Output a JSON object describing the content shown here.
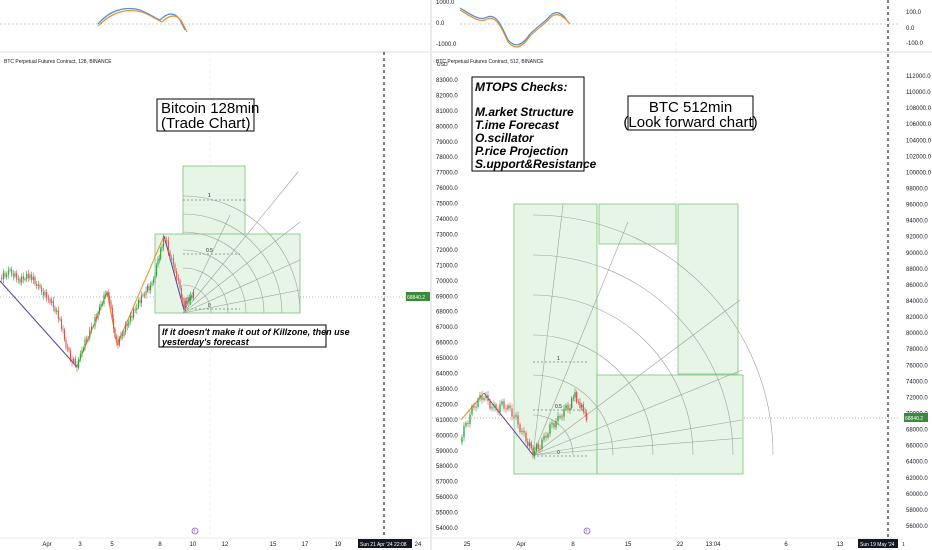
{
  "left_chart": {
    "header": "BTC Perpetual Futures Contract, 128, BINANCE",
    "title_lines": [
      "Bitcoin 128min",
      "(Trade Chart)"
    ],
    "note_lines": [
      "If it doesn't make it out of Killzone, then use",
      "yesterday's forecast"
    ],
    "price_ticks": [
      "83000.0",
      "82000.0",
      "81000.0",
      "80000.0",
      "79000.0",
      "78000.0",
      "77000.0",
      "76000.0",
      "75000.0",
      "74000.0",
      "73000.0",
      "72000.0",
      "71000.0",
      "70000.0",
      "69000.0",
      "68000.0",
      "67000.0",
      "66000.0",
      "65000.0",
      "64000.0",
      "63000.0",
      "62000.0",
      "61000.0",
      "60000.0",
      "59000.0",
      "58000.0",
      "57000.0",
      "56000.0",
      "55000.0",
      "54000.0"
    ],
    "price_unit": "USD",
    "last_price": "68840.2",
    "date_ticks": [
      "Apr",
      "3",
      "5",
      "8",
      "10",
      "12",
      "15",
      "17",
      "19",
      "24"
    ],
    "time_label": "Sun 21 Apr '24   22:08",
    "fib_levels": [
      "1",
      "0.5",
      "0"
    ],
    "osc_ticks": []
  },
  "right_chart": {
    "header": "BTC Perpetual Futures Contract, 512, BINANCE",
    "title_lines": [
      "BTC 512min",
      "(Look forward chart)"
    ],
    "mtops_lines": [
      "MTOPS Checks:",
      "",
      "M.arket Structure",
      "T.ime Forecast",
      "O.scillator",
      "P.rice Projection",
      "S.upport&Resistance"
    ],
    "price_ticks": [
      "112000.0",
      "110000.0",
      "108000.0",
      "106000.0",
      "104000.0",
      "102000.0",
      "100000.0",
      "98000.0",
      "96000.0",
      "94000.0",
      "92000.0",
      "90000.0",
      "88000.0",
      "86000.0",
      "84000.0",
      "82000.0",
      "80000.0",
      "78000.0",
      "76000.0",
      "74000.0",
      "72000.0",
      "70000.0",
      "68000.0",
      "66000.0",
      "64000.0",
      "62000.0",
      "60000.0",
      "58000.0",
      "56000.0"
    ],
    "last_price": "68840.2",
    "date_ticks": [
      "25",
      "Apr",
      "8",
      "15",
      "22",
      "13:04",
      "6",
      "13"
    ],
    "time_label": "Sun 19 May '24",
    "time_label_suffix": "1",
    "fib_levels": [
      "1",
      "0.5",
      "0"
    ],
    "osc_ticks": [
      "1000.0",
      "0.0",
      "-1000.0"
    ],
    "osc_ticks_right": [
      "100.0",
      "0.0",
      "-100.0"
    ]
  },
  "colors": {
    "zone_fill": "#e6f5e6",
    "zone_stroke": "#7bc47b",
    "up_candle": "#26a69a",
    "down_candle": "#ef5350",
    "candle_green": "#2e9e3e",
    "orange_line": "#f28c28",
    "purple_line": "#5b3f9e",
    "osc_blue": "#4a90d9",
    "osc_orange": "#f28c28",
    "price_tag": "#3a8a3a"
  }
}
